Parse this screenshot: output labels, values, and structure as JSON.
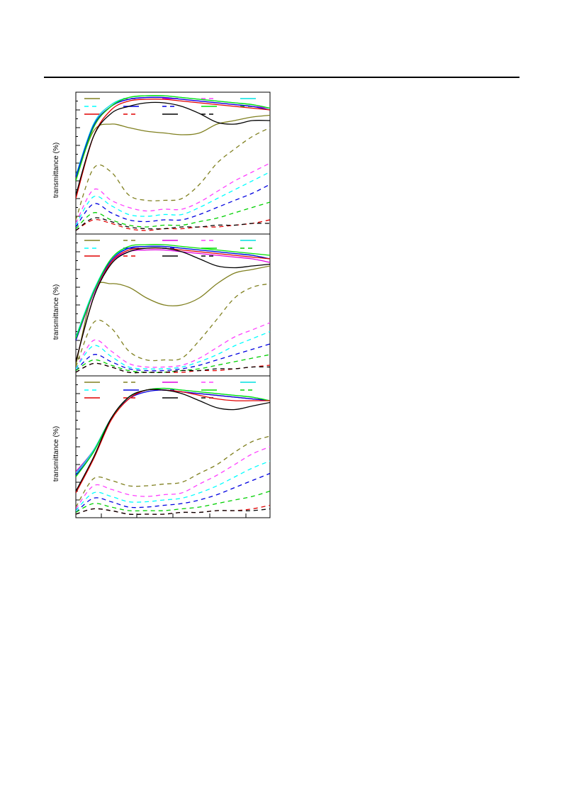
{
  "chart_data": [
    {
      "type": "line",
      "ylabel": "transmittance (%)",
      "xlabel": "",
      "title": "",
      "legend": "top (3 rows x 5 columns)",
      "grid": false,
      "series": [
        {
          "color": "#808020",
          "style": "solid",
          "y": [
            31,
            58,
            62,
            60,
            58,
            57,
            56,
            57,
            62,
            64,
            66,
            67
          ]
        },
        {
          "color": "#808020",
          "style": "dashed",
          "y": [
            8,
            37,
            35,
            22,
            19,
            19,
            20,
            28,
            40,
            48,
            55,
            60
          ]
        },
        {
          "color": "#e000e0",
          "style": "solid",
          "y": [
            32,
            60,
            72,
            76,
            77,
            77,
            76,
            75,
            74,
            73,
            72,
            71
          ]
        },
        {
          "color": "#ff40ff",
          "style": "dashed",
          "y": [
            6,
            25,
            19,
            15,
            13,
            14,
            14,
            18,
            24,
            30,
            35,
            40
          ]
        },
        {
          "color": "#00e0e0",
          "style": "solid",
          "y": [
            33,
            62,
            73,
            77,
            78,
            78,
            77,
            76,
            75,
            74,
            73,
            71
          ]
        },
        {
          "color": "#00ffff",
          "style": "dashed",
          "y": [
            5,
            21,
            16,
            11,
            10,
            11,
            11,
            15,
            20,
            25,
            30,
            35
          ]
        },
        {
          "color": "#0000e0",
          "style": "solid",
          "y": [
            32,
            61,
            72,
            76,
            77,
            77,
            76,
            75,
            74,
            73,
            72,
            70
          ]
        },
        {
          "color": "#0000e0",
          "style": "dashed",
          "y": [
            4,
            17,
            12,
            8,
            7,
            8,
            8,
            11,
            15,
            19,
            23,
            28
          ]
        },
        {
          "color": "#00e000",
          "style": "solid",
          "y": [
            30,
            60,
            72,
            77,
            78,
            78,
            77,
            76,
            75,
            74,
            73,
            71
          ]
        },
        {
          "color": "#00d000",
          "style": "dashed",
          "y": [
            3,
            12,
            8,
            5,
            4,
            5,
            5,
            7,
            9,
            12,
            15,
            18
          ]
        },
        {
          "color": "#e00000",
          "style": "solid",
          "y": [
            20,
            55,
            70,
            75,
            76,
            76,
            75,
            74,
            73,
            72,
            71,
            70
          ]
        },
        {
          "color": "#e00000",
          "style": "dashed",
          "y": [
            2,
            8,
            6,
            3,
            2,
            3,
            3,
            4,
            4,
            5,
            6,
            8
          ]
        },
        {
          "color": "#000000",
          "style": "solid",
          "y": [
            22,
            55,
            68,
            72,
            74,
            74,
            72,
            68,
            63,
            62,
            64,
            64
          ]
        },
        {
          "color": "#000000",
          "style": "dashed",
          "y": [
            2,
            9,
            7,
            4,
            3,
            3,
            4,
            4,
            5,
            5,
            6,
            6
          ]
        }
      ]
    },
    {
      "type": "line",
      "ylabel": "transmittance (%)",
      "xlabel": "",
      "title": "",
      "legend": "top (3 rows x 5 columns)",
      "grid": false,
      "series": [
        {
          "color": "#808020",
          "style": "solid",
          "y": [
            6,
            48,
            52,
            50,
            44,
            40,
            40,
            44,
            52,
            58,
            60,
            62
          ]
        },
        {
          "color": "#808020",
          "style": "dashed",
          "y": [
            5,
            30,
            27,
            14,
            9,
            9,
            10,
            20,
            32,
            44,
            50,
            52
          ]
        },
        {
          "color": "#e000e0",
          "style": "solid",
          "y": [
            20,
            46,
            64,
            70,
            71,
            71,
            70,
            69,
            68,
            67,
            66,
            64
          ]
        },
        {
          "color": "#ff40ff",
          "style": "dashed",
          "y": [
            4,
            20,
            14,
            7,
            5,
            5,
            6,
            10,
            16,
            22,
            26,
            30
          ]
        },
        {
          "color": "#00e0e0",
          "style": "solid",
          "y": [
            22,
            48,
            66,
            72,
            73,
            73,
            72,
            71,
            70,
            69,
            68,
            66
          ]
        },
        {
          "color": "#00ffff",
          "style": "dashed",
          "y": [
            4,
            17,
            11,
            5,
            4,
            4,
            5,
            8,
            12,
            17,
            21,
            25
          ]
        },
        {
          "color": "#0000e0",
          "style": "solid",
          "y": [
            20,
            47,
            65,
            72,
            73,
            73,
            72,
            71,
            70,
            69,
            68,
            66
          ]
        },
        {
          "color": "#0000e0",
          "style": "dashed",
          "y": [
            3,
            12,
            8,
            4,
            3,
            3,
            4,
            6,
            9,
            12,
            15,
            18
          ]
        },
        {
          "color": "#00e000",
          "style": "solid",
          "y": [
            21,
            47,
            66,
            73,
            74,
            74,
            73,
            72,
            71,
            70,
            69,
            68
          ]
        },
        {
          "color": "#00d000",
          "style": "dashed",
          "y": [
            3,
            9,
            6,
            3,
            2,
            2,
            3,
            4,
            6,
            8,
            10,
            12
          ]
        },
        {
          "color": "#e00000",
          "style": "solid",
          "y": [
            8,
            44,
            64,
            71,
            72,
            72,
            71,
            70,
            69,
            68,
            67,
            66
          ]
        },
        {
          "color": "#e00000",
          "style": "dashed",
          "y": [
            2,
            7,
            5,
            2,
            2,
            2,
            2,
            3,
            3,
            4,
            5,
            6
          ]
        },
        {
          "color": "#000000",
          "style": "solid",
          "y": [
            8,
            44,
            63,
            70,
            72,
            72,
            70,
            66,
            62,
            61,
            62,
            63
          ]
        },
        {
          "color": "#000000",
          "style": "dashed",
          "y": [
            2,
            7,
            5,
            2,
            2,
            2,
            3,
            3,
            4,
            4,
            5,
            5
          ]
        }
      ]
    },
    {
      "type": "line",
      "ylabel": "transmittance (%)",
      "xlabel": "",
      "title": "",
      "legend": "top (3 rows x 5 columns)",
      "grid": false,
      "series": [
        {
          "color": "#808020",
          "style": "solid",
          "y": [
            26,
            38,
            56,
            68,
            72,
            72,
            71,
            70,
            69,
            68,
            67,
            66
          ]
        },
        {
          "color": "#808020",
          "style": "dashed",
          "y": [
            6,
            22,
            21,
            18,
            18,
            19,
            20,
            25,
            30,
            37,
            43,
            46
          ]
        },
        {
          "color": "#e000e0",
          "style": "solid",
          "y": [
            26,
            38,
            56,
            67,
            72,
            72,
            71,
            70,
            69,
            68,
            67,
            66
          ]
        },
        {
          "color": "#ff40ff",
          "style": "dashed",
          "y": [
            5,
            18,
            16,
            13,
            12,
            13,
            14,
            19,
            24,
            30,
            36,
            40
          ]
        },
        {
          "color": "#00e0e0",
          "style": "solid",
          "y": [
            25,
            38,
            56,
            68,
            72,
            73,
            72,
            71,
            70,
            69,
            68,
            66
          ]
        },
        {
          "color": "#00ffff",
          "style": "dashed",
          "y": [
            4,
            14,
            12,
            9,
            9,
            10,
            11,
            14,
            18,
            23,
            28,
            32
          ]
        },
        {
          "color": "#0000e0",
          "style": "solid",
          "y": [
            24,
            37,
            56,
            67,
            71,
            72,
            71,
            70,
            69,
            68,
            67,
            66
          ]
        },
        {
          "color": "#0000e0",
          "style": "dashed",
          "y": [
            3,
            11,
            9,
            6,
            6,
            7,
            8,
            10,
            13,
            17,
            21,
            25
          ]
        },
        {
          "color": "#00e000",
          "style": "solid",
          "y": [
            23,
            37,
            56,
            68,
            72,
            73,
            72,
            71,
            70,
            69,
            68,
            66
          ]
        },
        {
          "color": "#00d000",
          "style": "dashed",
          "y": [
            3,
            8,
            6,
            4,
            4,
            4,
            5,
            6,
            8,
            10,
            12,
            15
          ]
        },
        {
          "color": "#e00000",
          "style": "solid",
          "y": [
            14,
            33,
            55,
            67,
            72,
            72,
            71,
            69,
            67,
            66,
            66,
            66
          ]
        },
        {
          "color": "#e00000",
          "style": "dashed",
          "y": [
            2,
            5,
            4,
            2,
            2,
            2,
            3,
            3,
            4,
            4,
            5,
            7
          ]
        },
        {
          "color": "#000000",
          "style": "solid",
          "y": [
            15,
            34,
            56,
            68,
            72,
            72,
            70,
            66,
            62,
            61,
            63,
            65
          ]
        },
        {
          "color": "#000000",
          "style": "dashed",
          "y": [
            2,
            5,
            4,
            2,
            2,
            2,
            3,
            3,
            4,
            4,
            4,
            5
          ]
        }
      ]
    }
  ]
}
